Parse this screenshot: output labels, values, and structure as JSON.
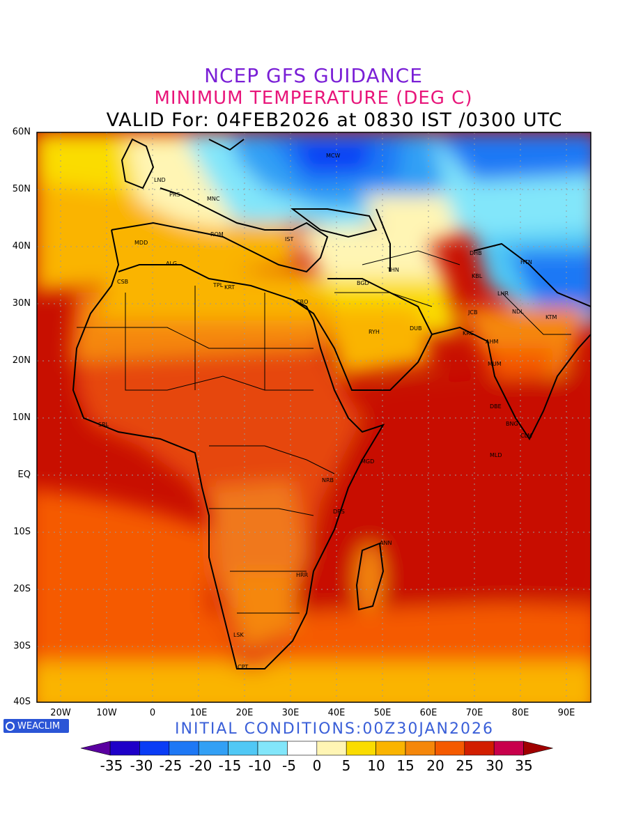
{
  "title": {
    "line1": "NCEP GFS GUIDANCE",
    "line2": "MINIMUM TEMPERATURE (DEG C)",
    "line3": "VALID For: 04FEB2026 at 0830 IST /0300 UTC",
    "color1": "#7a1fd6",
    "color2": "#e8157a"
  },
  "map": {
    "lat_labels": [
      "60N",
      "50N",
      "40N",
      "30N",
      "20N",
      "10N",
      "EQ",
      "10S",
      "20S",
      "30S",
      "40S"
    ],
    "lon_labels": [
      "20W",
      "10W",
      "0",
      "10E",
      "20E",
      "30E",
      "40E",
      "50E",
      "60E",
      "70E",
      "80E",
      "90E"
    ],
    "grid": true,
    "cities": [
      "MCW",
      "LND",
      "PRS",
      "MNC",
      "ROM",
      "MDD",
      "IST",
      "ALG",
      "CSB",
      "TPL",
      "KRT",
      "CRO",
      "BGD",
      "THN",
      "DHB",
      "HTN",
      "KBL",
      "LHR",
      "NDL",
      "JCB",
      "KTM",
      "RYH",
      "DUB",
      "KRC",
      "AHM",
      "MUM",
      "DBE",
      "BNG",
      "CLM",
      "MLD",
      "SRL",
      "MGD",
      "NRB",
      "DRS",
      "ANN",
      "HRR",
      "LSK",
      "CPT"
    ]
  },
  "footer": {
    "initial_conditions": "INITIAL CONDITIONS:00Z30JAN2026",
    "initial_color": "#3a5fd8",
    "logo_text": "WEACLIM",
    "logo_color": "#2b55d6"
  },
  "colorbar": {
    "labels": [
      "-35",
      "-30",
      "-25",
      "-20",
      "-15",
      "-10",
      "-5",
      "0",
      "5",
      "10",
      "15",
      "20",
      "25",
      "30",
      "35"
    ],
    "colors": [
      "#1e00c8",
      "#0a3cf5",
      "#1e78f5",
      "#32a0f5",
      "#50c8f5",
      "#82e6fa",
      "#ffffff",
      "#fff5b4",
      "#fadc00",
      "#fab400",
      "#f5870a",
      "#f55a00",
      "#d21e00",
      "#c8004b",
      "#a00000"
    ],
    "under_color": "#5a00a0",
    "over_color": "#a00000"
  }
}
